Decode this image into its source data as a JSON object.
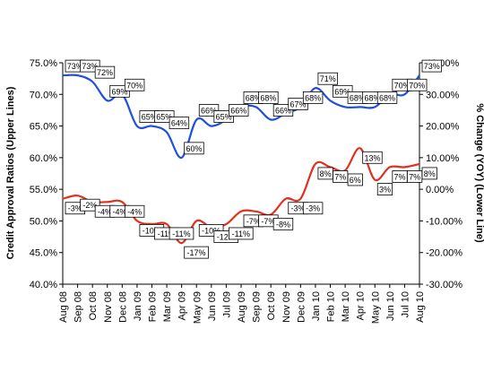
{
  "chart_data": {
    "type": "line",
    "x": [
      "Aug 08",
      "Sep 08",
      "Oct 08",
      "Nov 08",
      "Dec 08",
      "Jan 09",
      "Feb 09",
      "Mar 09",
      "Apr 09",
      "May 09",
      "Jun 09",
      "Jul 09",
      "Aug 09",
      "Sep 09",
      "Oct 09",
      "Nov 09",
      "Dec 09",
      "Jan 10",
      "Feb 10",
      "Mar 10",
      "Apr 10",
      "May 10",
      "Jun 10",
      "Jul 10",
      "Aug 10"
    ],
    "xlabel": "",
    "y_left": {
      "label": "Credit Approval Ratios (Upper Lines)",
      "range": [
        40,
        75
      ],
      "ticks": [
        "40.0%",
        "45.0%",
        "50.0%",
        "55.0%",
        "60.0%",
        "65.0%",
        "70.0%",
        "75.0%"
      ]
    },
    "y_right": {
      "label": "% Change (YOY) (Lower Line)",
      "range": [
        -30,
        40
      ],
      "ticks": [
        "-30.00%",
        "-20.00%",
        "-10.00%",
        "0.00%",
        "10.00%",
        "20.00%",
        "30.00%",
        "40.00%"
      ]
    },
    "grid": false,
    "legend": "none",
    "series": [
      {
        "axis": "left",
        "color": "#1f4fe0",
        "values": [
          73,
          73,
          72,
          69,
          70,
          65,
          65,
          64,
          60,
          66,
          65,
          66,
          68,
          68,
          66,
          67,
          68,
          71,
          69,
          68,
          68,
          68,
          70,
          70,
          73
        ],
        "labels": [
          "73%",
          "73%",
          "72%",
          "69%",
          "70%",
          "65%",
          "65%",
          "64%",
          "60%",
          "66%",
          "65%",
          "66%",
          "68%",
          "68%",
          "66%",
          "67%",
          "68%",
          "71%",
          "69%",
          "68%",
          "68%",
          "68%",
          "70%",
          "70%",
          "73%"
        ]
      },
      {
        "axis": "right",
        "color": "#e0301e",
        "values": [
          -3,
          -2,
          -4,
          -4,
          -4,
          -10,
          -11,
          -11,
          -17,
          -10,
          -12,
          -11,
          -7,
          -7,
          -8,
          -3,
          -3,
          8,
          7,
          6,
          13,
          3,
          7,
          7,
          8
        ],
        "labels": [
          "-3%",
          "-2%",
          "-4%",
          "-4%",
          "-4%",
          "-10%",
          "-11%",
          "-11%",
          "-17%",
          "-10%",
          "-12%",
          "-11%",
          "-7%",
          "-7%",
          "-8%",
          "-3%",
          "-3%",
          "8%",
          "7%",
          "6%",
          "13%",
          "3%",
          "7%",
          "7%",
          "8%"
        ]
      }
    ]
  }
}
